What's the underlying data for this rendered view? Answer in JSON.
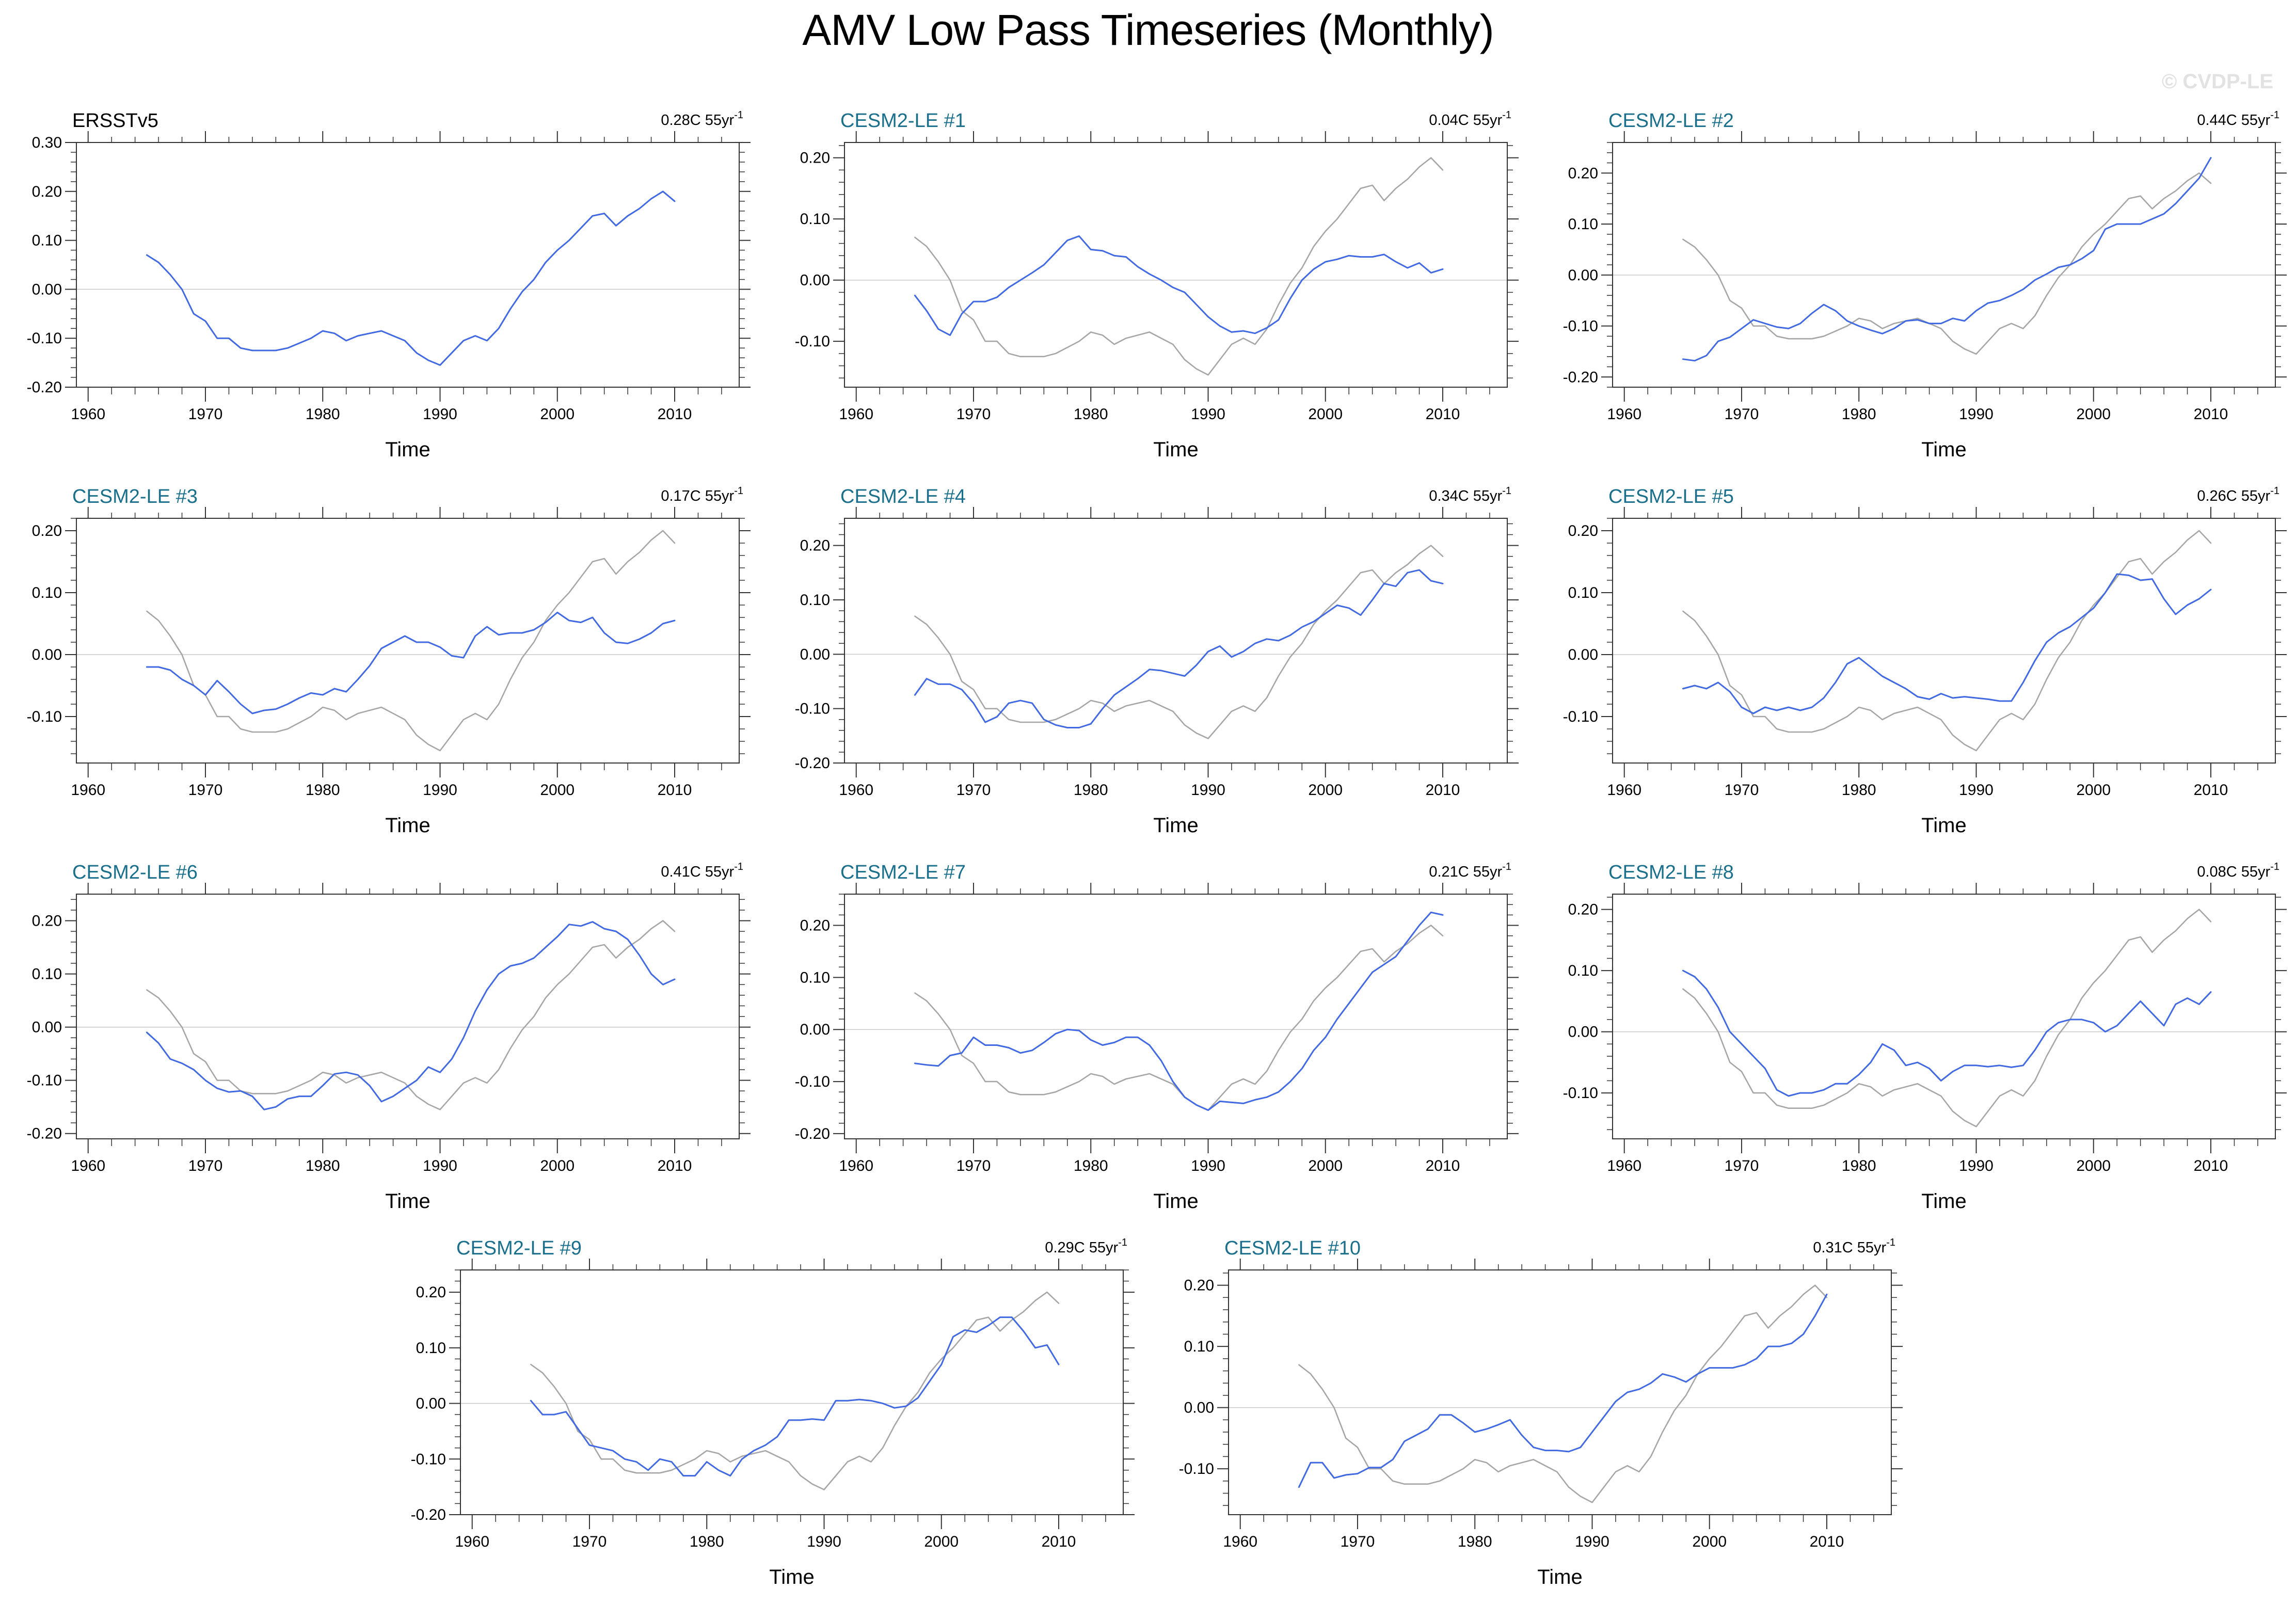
{
  "page": {
    "title": "AMV Low Pass Timeseries (Monthly)",
    "watermark": "© CVDP-LE"
  },
  "styles": {
    "member_line_color": "#4169E1",
    "reference_line_color": "#A6A6A6",
    "member_title_color": "#1A708C",
    "observation_title_color": "#000000",
    "zero_line_color": "#C8C8C8",
    "axis_color": "#333333",
    "label_color": "#000000"
  },
  "chart_data": {
    "type": "line",
    "title": "AMV Low Pass Timeseries (Monthly)",
    "xlabel": "Time",
    "ylabel": "",
    "legend": "none",
    "grid": "zero-line-only",
    "xlim": [
      1959,
      2015.5
    ],
    "x_major_ticks": [
      1960,
      1970,
      1980,
      1990,
      2000,
      2010
    ],
    "x_minor_tick_step": 2,
    "y_minor_tick_step": 0.02,
    "x_start_year": 1965,
    "x_step_years": 1,
    "reference": {
      "name": "ERSSTv5",
      "values": [
        0.07,
        0.055,
        0.03,
        0.0,
        -0.05,
        -0.065,
        -0.1,
        -0.1,
        -0.12,
        -0.125,
        -0.125,
        -0.125,
        -0.12,
        -0.11,
        -0.1,
        -0.085,
        -0.09,
        -0.105,
        -0.095,
        -0.09,
        -0.085,
        -0.095,
        -0.105,
        -0.13,
        -0.145,
        -0.155,
        -0.13,
        -0.105,
        -0.095,
        -0.105,
        -0.08,
        -0.04,
        -0.005,
        0.02,
        0.055,
        0.08,
        0.1,
        0.125,
        0.15,
        0.155,
        0.13,
        0.15,
        0.165,
        0.185,
        0.2,
        0.18
      ]
    },
    "panels": [
      {
        "title": "ERSSTv5",
        "title_style": "observation",
        "trend": "0.28C 55yr",
        "trend_exponent": "-1",
        "show_reference": false,
        "ylim": [
          -0.2,
          0.3
        ],
        "yticks": [
          0.3,
          0.2,
          0.1,
          0.0,
          -0.1,
          -0.2
        ],
        "values": [
          0.07,
          0.055,
          0.03,
          0.0,
          -0.05,
          -0.065,
          -0.1,
          -0.1,
          -0.12,
          -0.125,
          -0.125,
          -0.125,
          -0.12,
          -0.11,
          -0.1,
          -0.085,
          -0.09,
          -0.105,
          -0.095,
          -0.09,
          -0.085,
          -0.095,
          -0.105,
          -0.13,
          -0.145,
          -0.155,
          -0.13,
          -0.105,
          -0.095,
          -0.105,
          -0.08,
          -0.04,
          -0.005,
          0.02,
          0.055,
          0.08,
          0.1,
          0.125,
          0.15,
          0.155,
          0.13,
          0.15,
          0.165,
          0.185,
          0.2,
          0.18
        ]
      },
      {
        "title": "CESM2-LE #1",
        "title_style": "member",
        "trend": "0.04C 55yr",
        "trend_exponent": "-1",
        "show_reference": true,
        "ylim": [
          -0.175,
          0.225
        ],
        "yticks": [
          0.2,
          0.1,
          0.0,
          -0.1
        ],
        "values": [
          -0.025,
          -0.05,
          -0.08,
          -0.09,
          -0.055,
          -0.035,
          -0.035,
          -0.028,
          -0.012,
          0.0,
          0.012,
          0.025,
          0.045,
          0.065,
          0.072,
          0.05,
          0.048,
          0.04,
          0.038,
          0.022,
          0.01,
          0.0,
          -0.012,
          -0.02,
          -0.04,
          -0.06,
          -0.075,
          -0.085,
          -0.083,
          -0.087,
          -0.078,
          -0.065,
          -0.03,
          0.0,
          0.018,
          0.03,
          0.034,
          0.04,
          0.038,
          0.038,
          0.042,
          0.03,
          0.02,
          0.028,
          0.012,
          0.018
        ]
      },
      {
        "title": "CESM2-LE #2",
        "title_style": "member",
        "trend": "0.44C 55yr",
        "trend_exponent": "-1",
        "show_reference": true,
        "ylim": [
          -0.22,
          0.26
        ],
        "yticks": [
          0.2,
          0.1,
          0.0,
          -0.1,
          -0.2
        ],
        "values": [
          -0.165,
          -0.168,
          -0.158,
          -0.13,
          -0.122,
          -0.105,
          -0.088,
          -0.095,
          -0.102,
          -0.105,
          -0.095,
          -0.075,
          -0.058,
          -0.07,
          -0.09,
          -0.1,
          -0.108,
          -0.115,
          -0.105,
          -0.09,
          -0.088,
          -0.095,
          -0.095,
          -0.085,
          -0.09,
          -0.07,
          -0.055,
          -0.05,
          -0.04,
          -0.028,
          -0.01,
          0.002,
          0.015,
          0.02,
          0.032,
          0.048,
          0.09,
          0.1,
          0.1,
          0.1,
          0.11,
          0.12,
          0.14,
          0.165,
          0.19,
          0.23
        ]
      },
      {
        "title": "CESM2-LE #3",
        "title_style": "member",
        "trend": "0.17C 55yr",
        "trend_exponent": "-1",
        "show_reference": true,
        "ylim": [
          -0.175,
          0.22
        ],
        "yticks": [
          0.2,
          0.1,
          0.0,
          -0.1
        ],
        "values": [
          -0.02,
          -0.02,
          -0.025,
          -0.04,
          -0.05,
          -0.065,
          -0.042,
          -0.06,
          -0.08,
          -0.095,
          -0.09,
          -0.088,
          -0.08,
          -0.07,
          -0.062,
          -0.065,
          -0.055,
          -0.06,
          -0.04,
          -0.018,
          0.01,
          0.02,
          0.03,
          0.02,
          0.02,
          0.012,
          -0.002,
          -0.005,
          0.03,
          0.045,
          0.032,
          0.035,
          0.035,
          0.04,
          0.052,
          0.068,
          0.055,
          0.052,
          0.06,
          0.035,
          0.02,
          0.018,
          0.025,
          0.035,
          0.05,
          0.055
        ]
      },
      {
        "title": "CESM2-LE #4",
        "title_style": "member",
        "trend": "0.34C 55yr",
        "trend_exponent": "-1",
        "show_reference": true,
        "ylim": [
          -0.2,
          0.25
        ],
        "yticks": [
          0.2,
          0.1,
          0.0,
          -0.1,
          -0.2
        ],
        "values": [
          -0.075,
          -0.045,
          -0.055,
          -0.055,
          -0.065,
          -0.09,
          -0.125,
          -0.115,
          -0.09,
          -0.085,
          -0.09,
          -0.12,
          -0.13,
          -0.135,
          -0.135,
          -0.128,
          -0.1,
          -0.075,
          -0.06,
          -0.045,
          -0.028,
          -0.03,
          -0.035,
          -0.04,
          -0.02,
          0.005,
          0.015,
          -0.005,
          0.005,
          0.02,
          0.028,
          0.025,
          0.035,
          0.05,
          0.06,
          0.075,
          0.09,
          0.085,
          0.072,
          0.1,
          0.13,
          0.125,
          0.15,
          0.155,
          0.135,
          0.13
        ]
      },
      {
        "title": "CESM2-LE #5",
        "title_style": "member",
        "trend": "0.26C 55yr",
        "trend_exponent": "-1",
        "show_reference": true,
        "ylim": [
          -0.175,
          0.22
        ],
        "yticks": [
          0.2,
          0.1,
          0.0,
          -0.1
        ],
        "values": [
          -0.055,
          -0.05,
          -0.055,
          -0.045,
          -0.06,
          -0.085,
          -0.095,
          -0.085,
          -0.09,
          -0.085,
          -0.09,
          -0.085,
          -0.07,
          -0.045,
          -0.015,
          -0.005,
          -0.02,
          -0.035,
          -0.045,
          -0.055,
          -0.068,
          -0.072,
          -0.063,
          -0.07,
          -0.068,
          -0.07,
          -0.072,
          -0.075,
          -0.075,
          -0.045,
          -0.01,
          0.02,
          0.035,
          0.045,
          0.06,
          0.075,
          0.1,
          0.13,
          0.128,
          0.12,
          0.122,
          0.09,
          0.065,
          0.08,
          0.09,
          0.105
        ]
      },
      {
        "title": "CESM2-LE #6",
        "title_style": "member",
        "trend": "0.41C 55yr",
        "trend_exponent": "-1",
        "show_reference": true,
        "ylim": [
          -0.21,
          0.25
        ],
        "yticks": [
          0.2,
          0.1,
          0.0,
          -0.1,
          -0.2
        ],
        "values": [
          -0.01,
          -0.03,
          -0.06,
          -0.068,
          -0.08,
          -0.1,
          -0.115,
          -0.122,
          -0.12,
          -0.13,
          -0.155,
          -0.15,
          -0.135,
          -0.13,
          -0.13,
          -0.11,
          -0.088,
          -0.085,
          -0.09,
          -0.11,
          -0.14,
          -0.13,
          -0.115,
          -0.1,
          -0.075,
          -0.085,
          -0.06,
          -0.02,
          0.03,
          0.07,
          0.1,
          0.115,
          0.12,
          0.13,
          0.15,
          0.17,
          0.193,
          0.19,
          0.198,
          0.185,
          0.18,
          0.165,
          0.135,
          0.1,
          0.08,
          0.09
        ]
      },
      {
        "title": "CESM2-LE #7",
        "title_style": "member",
        "trend": "0.21C 55yr",
        "trend_exponent": "-1",
        "show_reference": true,
        "ylim": [
          -0.21,
          0.26
        ],
        "yticks": [
          0.2,
          0.1,
          0.0,
          -0.1,
          -0.2
        ],
        "values": [
          -0.065,
          -0.068,
          -0.07,
          -0.05,
          -0.045,
          -0.015,
          -0.03,
          -0.03,
          -0.035,
          -0.045,
          -0.04,
          -0.025,
          -0.008,
          0.0,
          -0.002,
          -0.02,
          -0.03,
          -0.025,
          -0.015,
          -0.015,
          -0.03,
          -0.06,
          -0.1,
          -0.13,
          -0.145,
          -0.155,
          -0.138,
          -0.14,
          -0.142,
          -0.135,
          -0.13,
          -0.12,
          -0.1,
          -0.075,
          -0.04,
          -0.015,
          0.02,
          0.05,
          0.08,
          0.11,
          0.125,
          0.14,
          0.17,
          0.2,
          0.225,
          0.22
        ]
      },
      {
        "title": "CESM2-LE #8",
        "title_style": "member",
        "trend": "0.08C 55yr",
        "trend_exponent": "-1",
        "show_reference": true,
        "ylim": [
          -0.175,
          0.225
        ],
        "yticks": [
          0.2,
          0.1,
          0.0,
          -0.1
        ],
        "values": [
          0.1,
          0.09,
          0.07,
          0.04,
          0.0,
          -0.02,
          -0.04,
          -0.06,
          -0.095,
          -0.105,
          -0.1,
          -0.1,
          -0.095,
          -0.085,
          -0.085,
          -0.07,
          -0.05,
          -0.02,
          -0.03,
          -0.055,
          -0.05,
          -0.06,
          -0.08,
          -0.065,
          -0.055,
          -0.055,
          -0.057,
          -0.055,
          -0.058,
          -0.055,
          -0.03,
          0.0,
          0.015,
          0.02,
          0.02,
          0.015,
          0.0,
          0.01,
          0.03,
          0.05,
          0.03,
          0.01,
          0.045,
          0.055,
          0.045,
          0.065
        ]
      },
      {
        "title": "CESM2-LE #9",
        "title_style": "member",
        "trend": "0.29C 55yr",
        "trend_exponent": "-1",
        "show_reference": true,
        "ylim": [
          -0.2,
          0.24
        ],
        "yticks": [
          0.2,
          0.1,
          0.0,
          -0.1,
          -0.2
        ],
        "values": [
          0.005,
          -0.02,
          -0.02,
          -0.015,
          -0.045,
          -0.075,
          -0.08,
          -0.085,
          -0.1,
          -0.105,
          -0.12,
          -0.1,
          -0.105,
          -0.13,
          -0.13,
          -0.105,
          -0.12,
          -0.13,
          -0.1,
          -0.085,
          -0.075,
          -0.06,
          -0.03,
          -0.03,
          -0.028,
          -0.03,
          0.005,
          0.005,
          0.007,
          0.005,
          0.0,
          -0.008,
          -0.005,
          0.01,
          0.04,
          0.07,
          0.12,
          0.132,
          0.128,
          0.14,
          0.155,
          0.155,
          0.13,
          0.1,
          0.105,
          0.07
        ]
      },
      {
        "title": "CESM2-LE #10",
        "title_style": "member",
        "trend": "0.31C 55yr",
        "trend_exponent": "-1",
        "show_reference": true,
        "ylim": [
          -0.175,
          0.225
        ],
        "yticks": [
          0.2,
          0.1,
          0.0,
          -0.1
        ],
        "values": [
          -0.13,
          -0.09,
          -0.09,
          -0.115,
          -0.11,
          -0.108,
          -0.098,
          -0.098,
          -0.085,
          -0.055,
          -0.045,
          -0.035,
          -0.012,
          -0.012,
          -0.025,
          -0.04,
          -0.035,
          -0.028,
          -0.02,
          -0.045,
          -0.065,
          -0.07,
          -0.07,
          -0.072,
          -0.065,
          -0.04,
          -0.015,
          0.01,
          0.025,
          0.03,
          0.04,
          0.055,
          0.05,
          0.042,
          0.055,
          0.065,
          0.065,
          0.065,
          0.07,
          0.08,
          0.1,
          0.1,
          0.105,
          0.12,
          0.15,
          0.185
        ]
      }
    ]
  }
}
